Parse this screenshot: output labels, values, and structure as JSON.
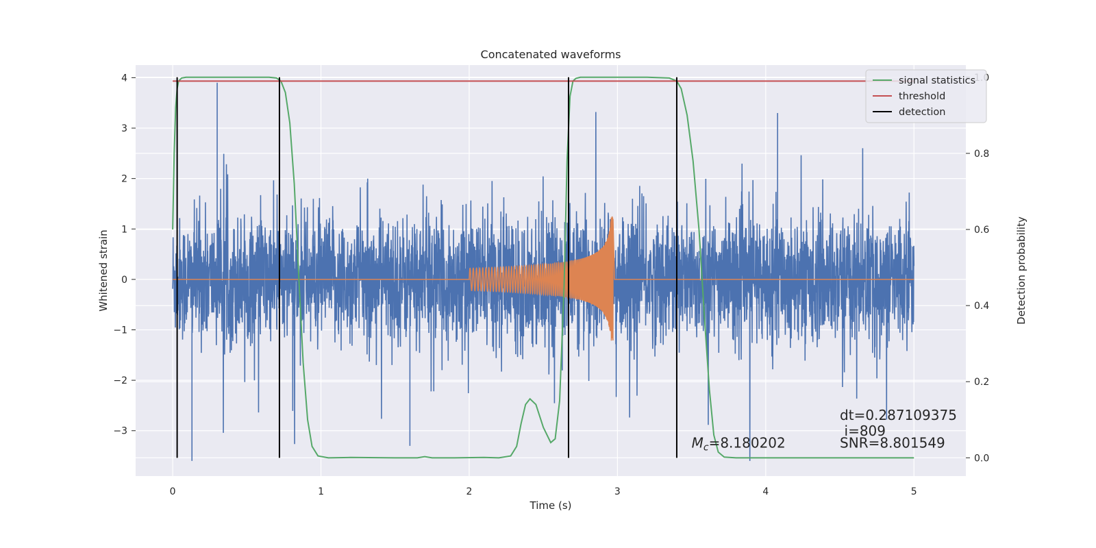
{
  "chart_data": {
    "type": "line",
    "title": "Concatenated waveforms",
    "xlabel": "Time (s)",
    "ylabel": "Whitened strain",
    "ylabel_right": "Detection probability",
    "xlim": [
      -0.25,
      5.35
    ],
    "ylim": [
      -3.9,
      4.25
    ],
    "ylim_right": [
      -0.048,
      1.032
    ],
    "xticks": [
      0,
      1,
      2,
      3,
      4,
      5
    ],
    "yticks": [
      -3,
      -2,
      -1,
      0,
      1,
      2,
      3,
      4
    ],
    "yticks_right": [
      0.0,
      0.2,
      0.4,
      0.6,
      0.8,
      1.0
    ],
    "grid": true,
    "legend_position": "top-right",
    "series": [
      {
        "name": "signal statistics",
        "axis": "right",
        "color": "#55a868",
        "x": [
          0.0,
          0.01,
          0.02,
          0.03,
          0.04,
          0.06,
          0.09,
          0.15,
          0.3,
          0.5,
          0.65,
          0.7,
          0.73,
          0.76,
          0.79,
          0.82,
          0.85,
          0.88,
          0.91,
          0.94,
          0.98,
          1.05,
          1.2,
          1.5,
          1.65,
          1.7,
          1.75,
          1.9,
          2.1,
          2.2,
          2.28,
          2.32,
          2.35,
          2.38,
          2.41,
          2.45,
          2.5,
          2.55,
          2.58,
          2.61,
          2.64,
          2.66,
          2.68,
          2.7,
          2.72,
          2.75,
          2.8,
          3.0,
          3.2,
          3.35,
          3.4,
          3.43,
          3.47,
          3.51,
          3.55,
          3.59,
          3.62,
          3.65,
          3.68,
          3.72,
          3.8,
          4.0,
          4.5,
          5.0
        ],
        "y": [
          0.6,
          0.8,
          0.92,
          0.97,
          0.99,
          0.998,
          1.0,
          1.0,
          1.0,
          1.0,
          1.0,
          0.998,
          0.99,
          0.96,
          0.88,
          0.72,
          0.48,
          0.25,
          0.1,
          0.03,
          0.005,
          0.0,
          0.001,
          0.0,
          0.0,
          0.003,
          0.0,
          0.0,
          0.001,
          0.0,
          0.005,
          0.03,
          0.09,
          0.14,
          0.155,
          0.14,
          0.08,
          0.04,
          0.05,
          0.15,
          0.45,
          0.78,
          0.95,
          0.99,
          0.997,
          1.0,
          1.0,
          1.0,
          1.0,
          0.998,
          0.99,
          0.97,
          0.9,
          0.78,
          0.6,
          0.35,
          0.18,
          0.06,
          0.015,
          0.002,
          0.0,
          0.0,
          0.0,
          0.0
        ]
      },
      {
        "name": "threshold",
        "axis": "right",
        "color": "#c44e52",
        "x": [
          0.0,
          5.0
        ],
        "y": [
          0.99,
          0.99
        ]
      },
      {
        "name": "detection",
        "axis": "right",
        "color": "#000000",
        "x_positions": [
          0.03,
          0.72,
          2.67,
          3.4
        ],
        "y_range": [
          0.0,
          1.0
        ]
      },
      {
        "name": "",
        "axis": "left",
        "color": "#4c72b0",
        "description_type": "noise",
        "x_range": [
          0.0,
          5.0
        ],
        "amplitude": 0.6,
        "peak_min": -3.6,
        "peak_max": 3.9
      },
      {
        "name": "",
        "axis": "left",
        "color": "#dd8452",
        "description_type": "chirp",
        "x_range": [
          0.0,
          5.0
        ],
        "chirp_start": 2.0,
        "chirp_end": 2.97,
        "start_amplitude": 0.22,
        "peak_positive": 1.25,
        "peak_negative": -1.3
      }
    ],
    "annotations": [
      {
        "text": "dt=0.287109375",
        "x": 4.5,
        "y_right": 0.1
      },
      {
        "text": "i=809",
        "x": 4.53,
        "y_right": 0.058
      },
      {
        "text": "SNR=8.801549",
        "x": 4.5,
        "y_right": 0.027
      },
      {
        "text": "=8.180202",
        "prefix": "M",
        "subscript": "c",
        "x": 3.5,
        "y_right": 0.027
      }
    ]
  }
}
